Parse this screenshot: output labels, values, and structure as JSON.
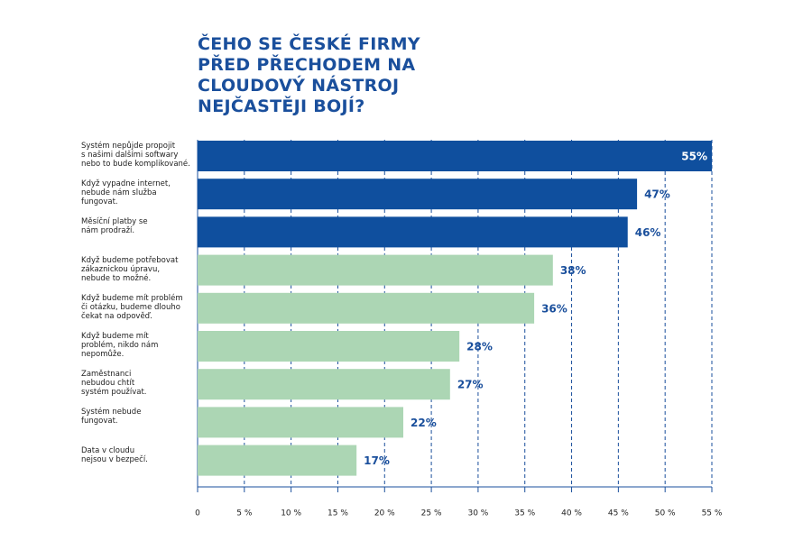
{
  "chart_data": {
    "type": "bar",
    "orientation": "horizontal",
    "title": "ČEHO SE ČESKÉ FIRMY\nPŘED PŘECHODEM NA\nCLOUDOVÝ NÁSTROJ\nNEJČASTĚJI BOJÍ?",
    "categories": [
      "Systém nepůjde propojit\ns našimi dalšími softwary\nnebo to bude komplikované.",
      "Když vypadne internet,\nnebude nám služba\nfungovat.",
      "Měsíční platby se\nnám prodraží.",
      "Když budeme potřebovat\nzákaznickou úpravu,\nnebude to možné.",
      "Když budeme mít problém\nči otázku, budeme dlouho\nčekat na odpověď.",
      "Když budeme mít\nproblém, nikdo nám\nnepomůže.",
      "Zaměstnanci\nnebudou chtít\nsystém používat.",
      "Systém nebude\nfungovat.",
      "Data v cloudu\nnejsou v bezpečí."
    ],
    "values": [
      55,
      47,
      46,
      38,
      36,
      28,
      27,
      22,
      17
    ],
    "value_labels": [
      "55%",
      "47%",
      "46%",
      "38%",
      "36%",
      "28%",
      "27%",
      "22%",
      "17%"
    ],
    "colors": [
      "#0f4f9e",
      "#0f4f9e",
      "#0f4f9e",
      "#acd6b4",
      "#acd6b4",
      "#acd6b4",
      "#acd6b4",
      "#acd6b4",
      "#acd6b4"
    ],
    "xlim": [
      0,
      55
    ],
    "xticks": [
      0,
      {
        "value": 5,
        "label": "5 %"
      },
      {
        "value": 10,
        "label": "10 %"
      },
      {
        "value": 15,
        "label": "15 %"
      },
      {
        "value": 20,
        "label": "20 %"
      },
      {
        "value": 25,
        "label": "25 %"
      },
      {
        "value": 30,
        "label": "30 %"
      },
      {
        "value": 35,
        "label": "35 %"
      },
      {
        "value": 40,
        "label": "40 %"
      },
      {
        "value": 45,
        "label": "45 %"
      },
      {
        "value": 50,
        "label": "50 %"
      },
      {
        "value": 55,
        "label": "55 %"
      }
    ],
    "grid": true
  }
}
